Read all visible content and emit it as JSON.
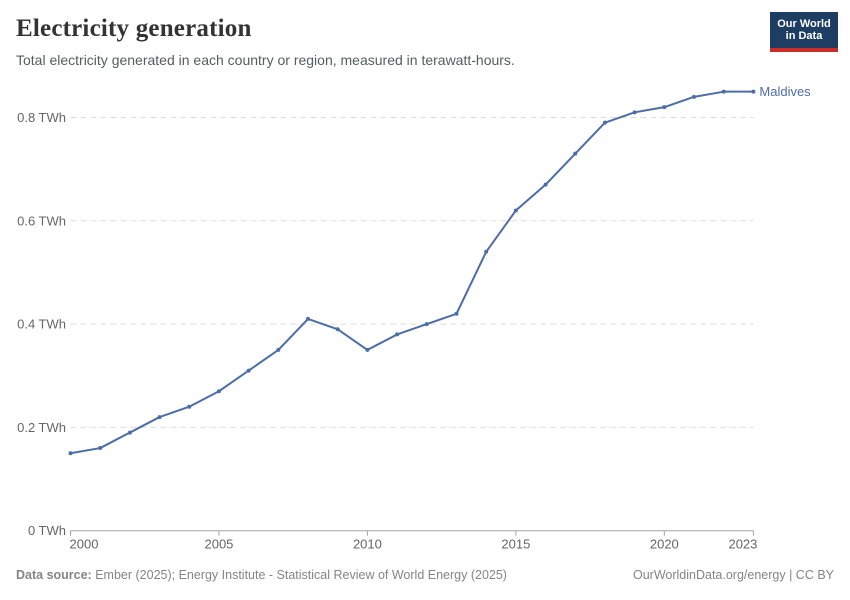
{
  "header": {
    "title": "Electricity generation",
    "subtitle": "Total electricity generated in each country or region, measured in terawatt-hours.",
    "logo": {
      "line1": "Our World",
      "line2": "in Data"
    }
  },
  "chart_data": {
    "type": "line",
    "title": "Electricity generation",
    "unit": "TWh",
    "x": [
      2000,
      2001,
      2002,
      2003,
      2004,
      2005,
      2006,
      2007,
      2008,
      2009,
      2010,
      2011,
      2012,
      2013,
      2014,
      2015,
      2016,
      2017,
      2018,
      2019,
      2020,
      2021,
      2022,
      2023
    ],
    "series": [
      {
        "name": "Maldives",
        "color": "#4c6da5",
        "values": [
          0.15,
          0.16,
          0.19,
          0.22,
          0.24,
          0.27,
          0.31,
          0.35,
          0.41,
          0.39,
          0.35,
          0.38,
          0.4,
          0.42,
          0.54,
          0.62,
          0.67,
          0.73,
          0.79,
          0.81,
          0.82,
          0.84,
          0.85,
          0.85
        ]
      }
    ],
    "ylim": [
      0,
      0.9
    ],
    "yticks": [
      {
        "value": 0,
        "label": "0 TWh"
      },
      {
        "value": 0.2,
        "label": "0.2 TWh"
      },
      {
        "value": 0.4,
        "label": "0.4 TWh"
      },
      {
        "value": 0.6,
        "label": "0.6 TWh"
      },
      {
        "value": 0.8,
        "label": "0.8 TWh"
      }
    ],
    "xticks": [
      2000,
      2005,
      2010,
      2015,
      2020,
      2023
    ],
    "grid": "horizontal-dashed",
    "legend_position": "end-of-line",
    "colors": {
      "grid": "#dddddd",
      "axis": "#a5a5a5",
      "tick_label": "#666666"
    }
  },
  "footer": {
    "datasource_label": "Data source:",
    "datasource_text": " Ember (2025); Energy Institute - Statistical Review of World Energy (2025)",
    "credit": "OurWorldinData.org/energy | CC BY"
  }
}
